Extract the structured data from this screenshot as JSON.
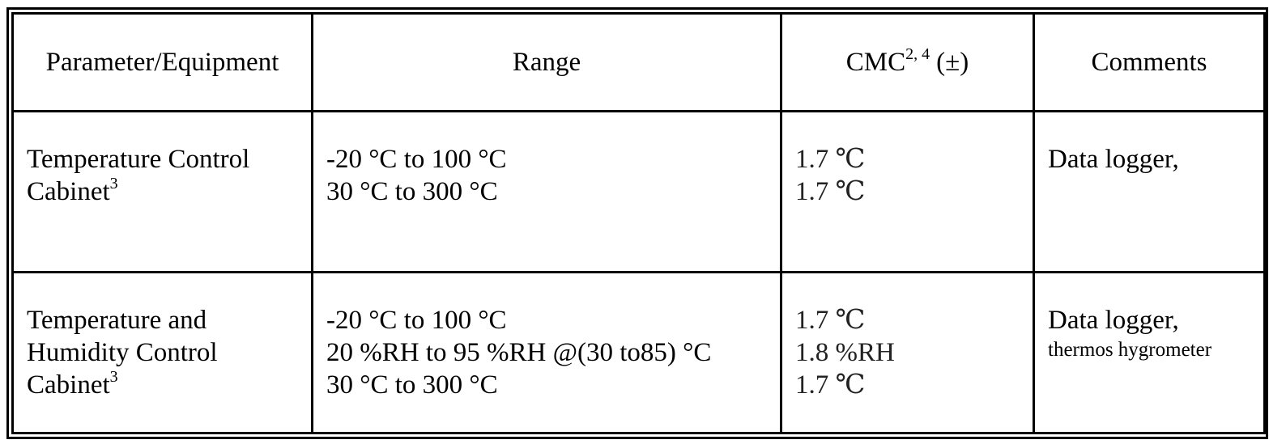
{
  "table": {
    "header": [
      {
        "text": "Parameter/Equipment"
      },
      {
        "text": "Range"
      },
      {
        "text": "CMC",
        "sup": "2, 4",
        "after": "(±)"
      },
      {
        "text": "Comments"
      }
    ],
    "rows": [
      {
        "parameter": {
          "lines": [
            "Temperature Control",
            "Cabinet"
          ],
          "sup": "3"
        },
        "range": [
          "-20 °C to 100 °C",
          "30 °C to 300 °C"
        ],
        "cmc": [
          "1.7 ℃",
          "1.7 ℃"
        ],
        "comments": [
          "Data logger,"
        ]
      },
      {
        "parameter": {
          "lines": [
            "Temperature and",
            "Humidity Control",
            "Cabinet"
          ],
          "sup": "3"
        },
        "range": [
          "-20 °C to 100 °C",
          "20 %RH to 95 %RH @(30 to85) °C",
          "30 °C to 300 °C"
        ],
        "cmc": [
          "1.7 ℃",
          "1.8 %RH",
          "1.7 ℃"
        ],
        "comments": [
          "Data logger,",
          "thermos hygrometer"
        ]
      }
    ]
  }
}
